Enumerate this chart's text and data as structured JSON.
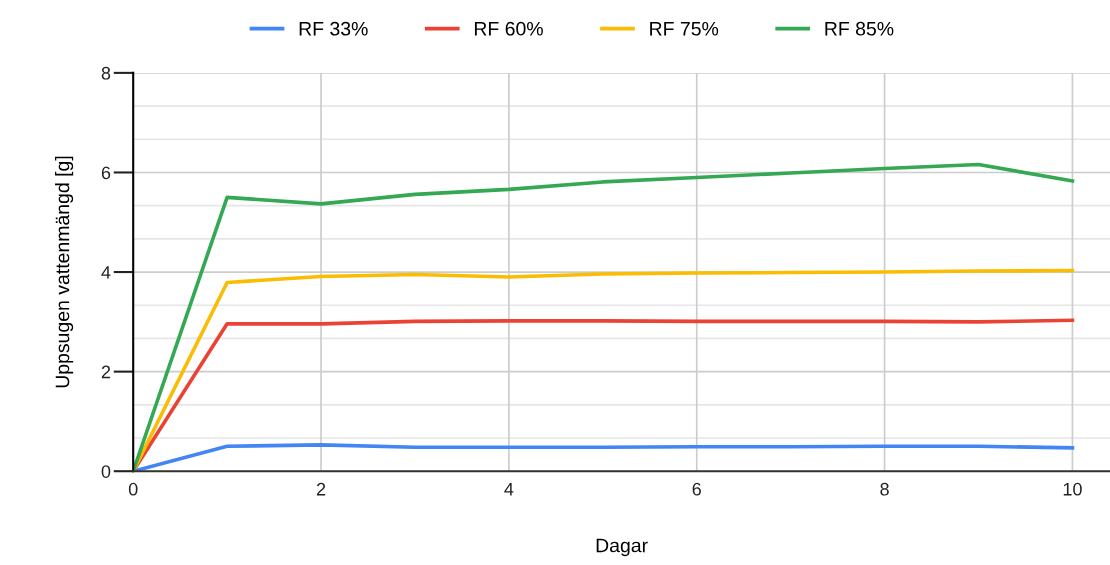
{
  "chart_data": {
    "type": "line",
    "xlabel": "Dagar",
    "ylabel": "Uppsugen vattenmängd [g]",
    "x": [
      0,
      1,
      2,
      3,
      4,
      5,
      6,
      7,
      8,
      9,
      10
    ],
    "series": [
      {
        "name": "RF 33%",
        "color": "#4285f4",
        "values": [
          0,
          0.5,
          0.53,
          0.48,
          0.48,
          0.48,
          0.49,
          0.49,
          0.5,
          0.5,
          0.47
        ]
      },
      {
        "name": "RF 60%",
        "color": "#ea4335",
        "values": [
          0,
          2.96,
          2.96,
          3.01,
          3.02,
          3.02,
          3.01,
          3.01,
          3.01,
          3.0,
          3.03
        ]
      },
      {
        "name": "RF 75%",
        "color": "#fbbc04",
        "values": [
          0,
          3.79,
          3.91,
          3.95,
          3.9,
          3.96,
          3.98,
          3.99,
          4.0,
          4.02,
          4.03
        ]
      },
      {
        "name": "RF 85%",
        "color": "#34a853",
        "values": [
          0,
          5.5,
          5.37,
          5.56,
          5.66,
          5.81,
          5.9,
          5.99,
          6.08,
          6.16,
          5.83
        ]
      }
    ],
    "xlim": [
      0,
      10.4
    ],
    "xticks": [
      0,
      2,
      4,
      6,
      8,
      10
    ],
    "ylim": [
      0,
      8
    ],
    "yticks": [
      0,
      2,
      4,
      6,
      8
    ],
    "grid": true,
    "legend": "top",
    "marker": "none",
    "line_style": "solid"
  }
}
